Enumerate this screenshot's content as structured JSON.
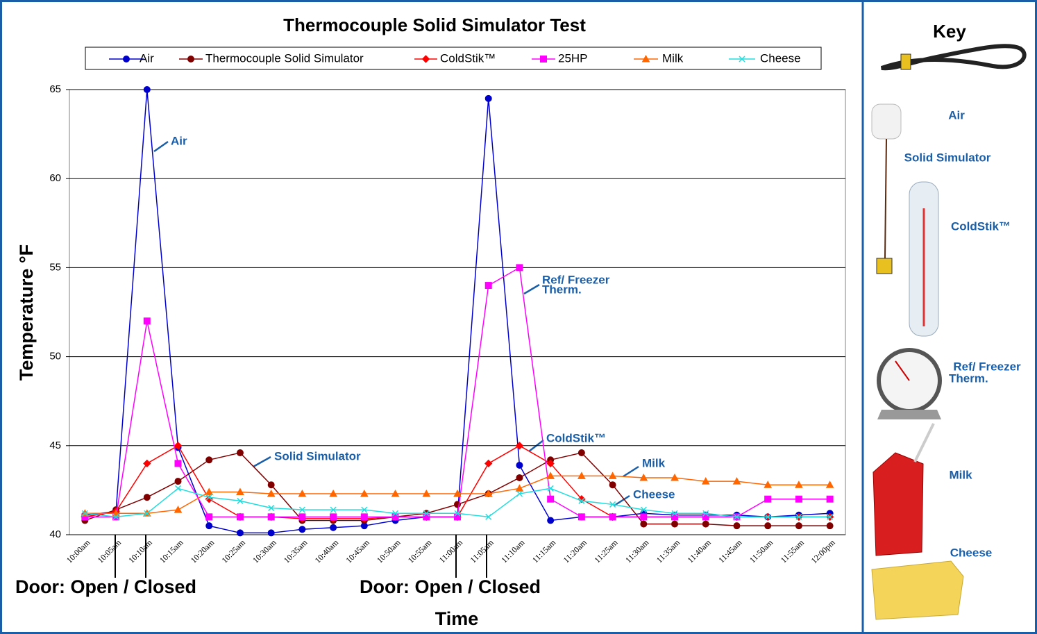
{
  "chart_data": {
    "type": "line",
    "title": "Thermocouple Solid Simulator Test",
    "x_label": "Time",
    "y_label": "Temperature °F",
    "categories": [
      "10:00am",
      "10:05am",
      "10:10am",
      "10:15am",
      "10:20am",
      "10:25am",
      "10:30am",
      "10:35am",
      "10:40am",
      "10:45am",
      "10:50am",
      "10:55am",
      "11:00am",
      "11:05am",
      "11:10am",
      "11:15am",
      "11:20am",
      "11:25am",
      "11:30am",
      "11:35am",
      "11:40am",
      "11:45am",
      "11:50am",
      "11:55am",
      "12:00pm"
    ],
    "ylim": [
      40,
      65
    ],
    "yticks": [
      40,
      45,
      50,
      55,
      60,
      65
    ],
    "grid": true,
    "series": [
      {
        "name": "Air",
        "color": "#0000cc",
        "marker": "circle",
        "values": [
          41.1,
          41.3,
          65,
          44.9,
          40.5,
          40.1,
          40.1,
          40.3,
          40.4,
          40.5,
          40.8,
          41.0,
          41.0,
          64.5,
          43.9,
          40.8,
          41.0,
          41.0,
          41.2,
          41.1,
          41.1,
          41.1,
          41.0,
          41.1,
          41.2
        ]
      },
      {
        "name": "Thermocouple Solid Simulator",
        "color": "#800000",
        "marker": "circle",
        "values": [
          40.8,
          41.4,
          42.1,
          43.0,
          44.2,
          44.6,
          42.8,
          40.8,
          40.8,
          40.8,
          41.0,
          41.2,
          41.7,
          42.3,
          43.2,
          44.2,
          44.6,
          42.8,
          40.6,
          40.6,
          40.6,
          40.5,
          40.5,
          40.5,
          40.5
        ]
      },
      {
        "name": "ColdStik™",
        "color": "#ff0000",
        "marker": "diamond",
        "values": [
          41.0,
          41.3,
          44.0,
          45.0,
          42.0,
          41.0,
          41.0,
          40.9,
          40.9,
          40.9,
          41.0,
          41.0,
          41.0,
          44.0,
          45.0,
          44.0,
          42.0,
          41.0,
          41.0,
          41.0,
          41.0,
          41.0,
          41.0,
          41.0,
          41.0
        ]
      },
      {
        "name": "25HP",
        "color": "#ff00ff",
        "marker": "square",
        "values": [
          41.0,
          41.0,
          52.0,
          44.0,
          41.0,
          41.0,
          41.0,
          41.0,
          41.0,
          41.0,
          41.0,
          41.0,
          41.0,
          54.0,
          55.0,
          42.0,
          41.0,
          41.0,
          41.0,
          41.0,
          41.0,
          41.0,
          42.0,
          42.0,
          42.0
        ]
      },
      {
        "name": "Milk",
        "color": "#ff6600",
        "marker": "triangle",
        "values": [
          41.2,
          41.2,
          41.2,
          41.4,
          42.4,
          42.4,
          42.3,
          42.3,
          42.3,
          42.3,
          42.3,
          42.3,
          42.3,
          42.3,
          42.6,
          43.3,
          43.3,
          43.3,
          43.2,
          43.2,
          43.0,
          43.0,
          42.8,
          42.8,
          42.8
        ]
      },
      {
        "name": "Cheese",
        "color": "#22dddd",
        "marker": "x",
        "values": [
          41.2,
          41.0,
          41.2,
          42.6,
          42.1,
          41.9,
          41.5,
          41.4,
          41.4,
          41.4,
          41.2,
          41.2,
          41.2,
          41.0,
          42.3,
          42.6,
          41.9,
          41.7,
          41.4,
          41.2,
          41.2,
          41.0,
          41.0,
          41.0,
          41.0
        ]
      }
    ],
    "annotations": [
      {
        "lines": [
          "Air"
        ]
      },
      {
        "lines": [
          "Solid Simulator"
        ]
      },
      {
        "lines": [
          "ColdStik™"
        ]
      },
      {
        "lines": [
          "Ref/ Freezer",
          "Therm."
        ]
      },
      {
        "lines": [
          "Milk"
        ]
      },
      {
        "lines": [
          "Cheese"
        ]
      },
      {
        "lines": [
          "Door: Open / Closed"
        ]
      },
      {
        "lines": [
          "Door: Open / Closed"
        ]
      }
    ]
  },
  "key": {
    "title": "Key",
    "labels": [
      {
        "lines": [
          "Air"
        ]
      },
      {
        "lines": [
          "Solid Simulator"
        ]
      },
      {
        "lines": [
          "ColdStik™"
        ]
      },
      {
        "lines": [
          "Ref/ Freezer",
          "Therm."
        ]
      },
      {
        "lines": [
          "Milk"
        ]
      },
      {
        "lines": [
          "Cheese"
        ]
      }
    ]
  }
}
